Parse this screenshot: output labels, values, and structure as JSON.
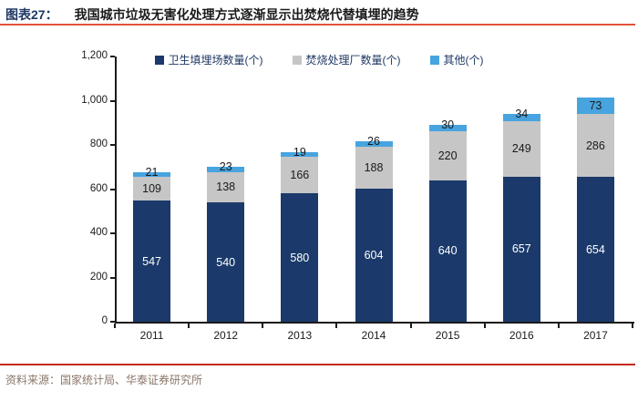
{
  "header": {
    "tag": "图表27：",
    "title": "我国城市垃圾无害化处理方式逐渐显示出焚烧代替填埋的趋势"
  },
  "footer": {
    "source": "资料来源：国家统计局、华泰证券研究所"
  },
  "colors": {
    "landfill": "#1B3A6B",
    "incineration": "#C6C6C6",
    "other": "#47A4DF",
    "accent_line_top": "#E2523B",
    "accent_line_bottom": "#C3291C",
    "header_tag": "#1F3864",
    "footer_text": "#8A7668",
    "axis": "#1a1a1a"
  },
  "chart_data": {
    "type": "bar",
    "stacked": true,
    "title": "我国城市垃圾无害化处理方式逐渐显示出焚烧代替填埋的趋势",
    "categories": [
      "2011",
      "2012",
      "2013",
      "2014",
      "2015",
      "2016",
      "2017"
    ],
    "series": [
      {
        "name": "卫生填埋场数量(个)",
        "color_key": "landfill",
        "label_color": "#FFFFFF",
        "values": [
          547,
          540,
          580,
          604,
          640,
          657,
          654
        ]
      },
      {
        "name": "焚烧处理厂数量(个)",
        "color_key": "incineration",
        "label_color": "#1a1a1a",
        "values": [
          109,
          138,
          166,
          188,
          220,
          249,
          286
        ]
      },
      {
        "name": "其他(个)",
        "color_key": "other",
        "label_color": "#1a1a1a",
        "values": [
          21,
          23,
          19,
          26,
          30,
          34,
          73
        ]
      }
    ],
    "xlabel": "",
    "ylabel": "",
    "ylim": [
      0,
      1200
    ],
    "ytick_step": 200,
    "yticks": [
      "0",
      "200",
      "400",
      "600",
      "800",
      "1,000",
      "1,200"
    ],
    "legend_position": "top",
    "grid": false,
    "data_labels": true
  }
}
